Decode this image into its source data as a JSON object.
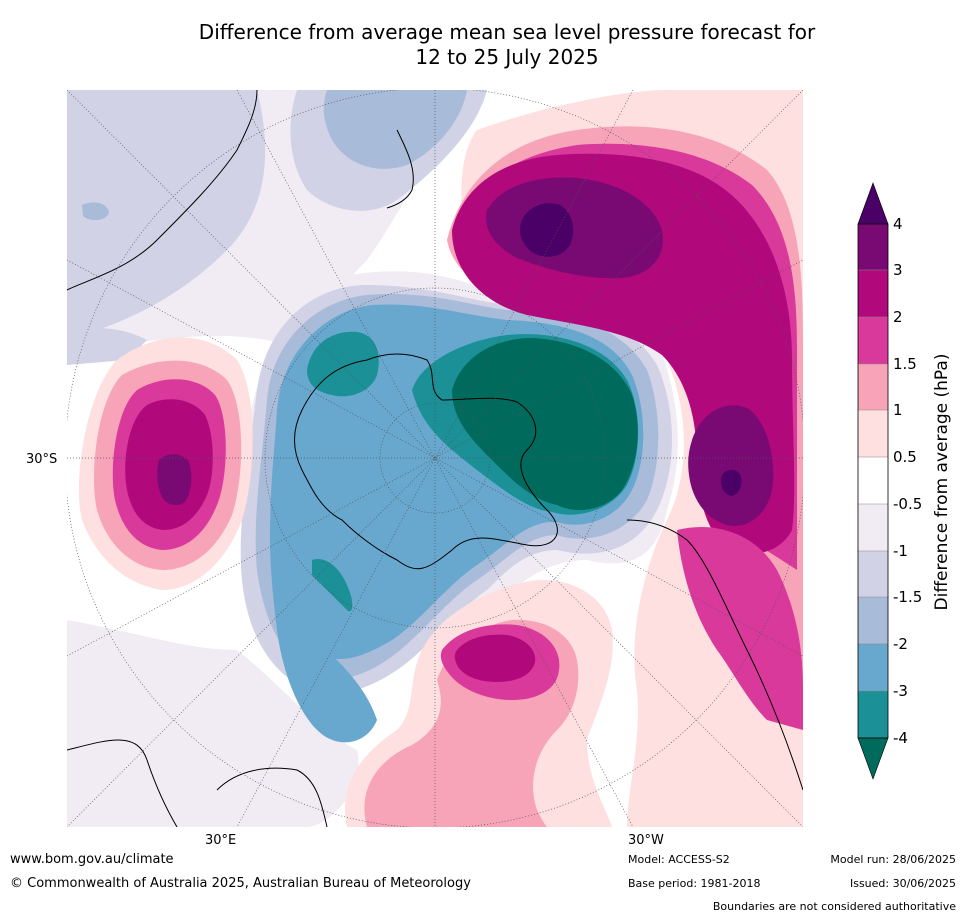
{
  "title": {
    "line1": "Difference from average mean sea level pressure forecast for",
    "line2": "12 to 25 July 2025"
  },
  "map_labels": {
    "lat_30s": "30°S",
    "lon_30e": "30°E",
    "lon_30w": "30°W"
  },
  "legend": {
    "title": "Difference from average (hPa)",
    "ticks": [
      "4",
      "3",
      "2",
      "1.5",
      "1",
      "0.5",
      "-0.5",
      "-1",
      "-1.5",
      "-2",
      "-3",
      "-4"
    ],
    "colors": {
      "above_4": "#4a0066",
      "3_to_4": "#7a0a73",
      "2_to_3": "#b1087c",
      "1_5_to_2": "#d9399b",
      "1_to_1_5": "#f7a3b8",
      "0_5_to_1": "#fde0df",
      "neutral": "#ffffff",
      "m1_to_m0_5": "#f1ecf4",
      "m1_5_to_m1": "#d2d2e6",
      "m2_to_m1_5": "#a8bbd9",
      "m3_to_m2": "#68a8cf",
      "m4_to_m3": "#1b9096",
      "below_m4": "#006a5c"
    }
  },
  "footer": {
    "url": "www.bom.gov.au/climate",
    "copyright": "© Commonwealth of Australia 2025, Australian Bureau of Meteorology",
    "model": "Model: ACCESS-S2",
    "base_period": "Base period: 1981-2018",
    "model_run": "Model run: 28/06/2025",
    "issued": "Issued: 30/06/2025",
    "boundaries": "Boundaries are not considered authoritative"
  }
}
